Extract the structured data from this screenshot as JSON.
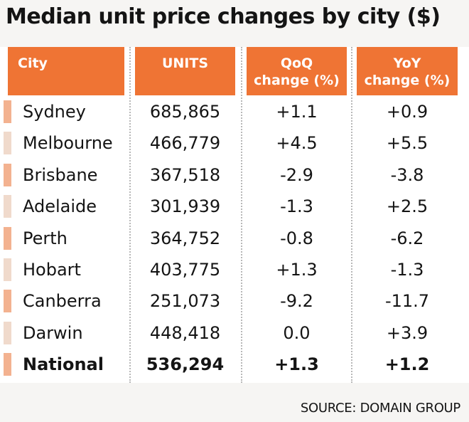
{
  "chart_data": {
    "type": "table",
    "title": "Median unit price changes by city ($)",
    "columns": [
      {
        "key": "city",
        "label": "City",
        "label_lines": [
          "City"
        ]
      },
      {
        "key": "units",
        "label": "UNITS",
        "label_lines": [
          "UNITS"
        ]
      },
      {
        "key": "qoq",
        "label": "QoQ change (%)",
        "label_lines": [
          "QoQ",
          "change (%)"
        ]
      },
      {
        "key": "yoy",
        "label": "YoY change (%)",
        "label_lines": [
          "YoY",
          "change (%)"
        ]
      }
    ],
    "rows": [
      {
        "city": "Sydney",
        "units": "685,865",
        "qoq": "+1.1",
        "yoy": "+0.9",
        "units_value": 685865,
        "qoq_value": 1.1,
        "yoy_value": 0.9
      },
      {
        "city": "Melbourne",
        "units": "466,779",
        "qoq": "+4.5",
        "yoy": "+5.5",
        "units_value": 466779,
        "qoq_value": 4.5,
        "yoy_value": 5.5
      },
      {
        "city": "Brisbane",
        "units": "367,518",
        "qoq": "-2.9",
        "yoy": "-3.8",
        "units_value": 367518,
        "qoq_value": -2.9,
        "yoy_value": -3.8
      },
      {
        "city": "Adelaide",
        "units": "301,939",
        "qoq": "-1.3",
        "yoy": "+2.5",
        "units_value": 301939,
        "qoq_value": -1.3,
        "yoy_value": 2.5
      },
      {
        "city": "Perth",
        "units": "364,752",
        "qoq": "-0.8",
        "yoy": "-6.2",
        "units_value": 364752,
        "qoq_value": -0.8,
        "yoy_value": -6.2
      },
      {
        "city": "Hobart",
        "units": "403,775",
        "qoq": "+1.3",
        "yoy": "-1.3",
        "units_value": 403775,
        "qoq_value": 1.3,
        "yoy_value": -1.3
      },
      {
        "city": "Canberra",
        "units": "251,073",
        "qoq": "-9.2",
        "yoy": "-11.7",
        "units_value": 251073,
        "qoq_value": -9.2,
        "yoy_value": -11.7
      },
      {
        "city": "Darwin",
        "units": "448,418",
        "qoq": "0.0",
        "yoy": "+3.9",
        "units_value": 448418,
        "qoq_value": 0.0,
        "yoy_value": 3.9
      },
      {
        "city": "National",
        "units": "536,294",
        "qoq": "+1.3",
        "yoy": "+1.2",
        "units_value": 536294,
        "qoq_value": 1.3,
        "yoy_value": 1.2,
        "emphasis": true
      }
    ],
    "source": "SOURCE: DOMAIN GROUP"
  },
  "colors": {
    "header_bg": "#ef7434",
    "header_text": "#ffffff",
    "marker_primary": "#f3b290",
    "marker_alt": "#f0dacc",
    "page_bg": "#f6f5f3",
    "table_bg": "#ffffff",
    "text": "#141414",
    "divider": "#b8b8b8"
  }
}
